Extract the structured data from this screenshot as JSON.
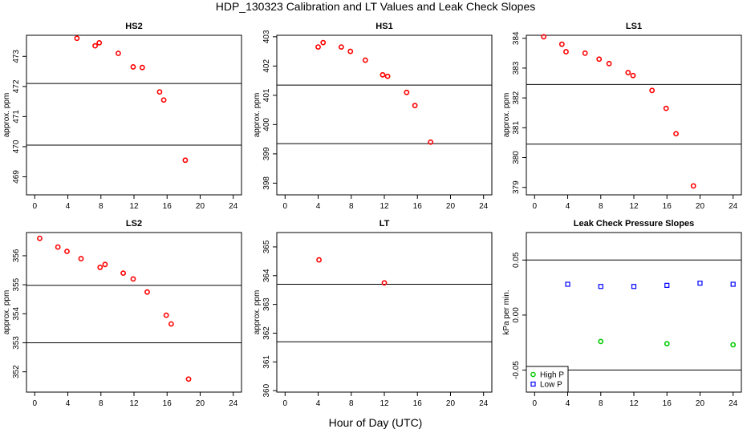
{
  "figure": {
    "title": "HDP_130323  Calibration and LT Values and Leak Check Slopes",
    "xlabel": "Hour of Day (UTC)"
  },
  "colors": {
    "calibration": "#ff0000",
    "high_p": "#00cc00",
    "low_p": "#0000ff",
    "reference_line": "#000000"
  },
  "chart_data": [
    {
      "id": "hs2",
      "type": "scatter",
      "title": "HS2",
      "ylabel": "approx. ppm",
      "xlim": [
        -1,
        25
      ],
      "ylim": [
        468.4,
        473.7
      ],
      "xticks": [
        0,
        4,
        8,
        12,
        16,
        20,
        24
      ],
      "yticks": [
        469,
        470,
        471,
        472,
        473
      ],
      "hlines": [
        470.05,
        472.1
      ],
      "series": [
        {
          "marker": "circle",
          "color": "#ff0000",
          "x": [
            5.1,
            7.3,
            7.8,
            10.1,
            11.9,
            13.0,
            15.1,
            15.6,
            18.2
          ],
          "y": [
            473.6,
            473.35,
            473.45,
            473.1,
            472.65,
            472.63,
            471.82,
            471.55,
            469.55
          ]
        }
      ]
    },
    {
      "id": "hs1",
      "type": "scatter",
      "title": "HS1",
      "ylabel": "approx. ppm",
      "xlim": [
        -1,
        25
      ],
      "ylim": [
        397.6,
        403.05
      ],
      "xticks": [
        0,
        4,
        8,
        12,
        16,
        20,
        24
      ],
      "yticks": [
        398,
        399,
        400,
        401,
        402,
        403
      ],
      "hlines": [
        399.35,
        401.35
      ],
      "series": [
        {
          "marker": "circle",
          "color": "#ff0000",
          "x": [
            4.0,
            4.6,
            6.8,
            7.9,
            9.7,
            11.8,
            12.4,
            14.7,
            15.7,
            17.6
          ],
          "y": [
            402.65,
            402.8,
            402.65,
            402.5,
            402.2,
            401.7,
            401.65,
            401.1,
            400.65,
            399.4
          ]
        }
      ]
    },
    {
      "id": "ls1",
      "type": "scatter",
      "title": "LS1",
      "ylabel": "approx. ppm",
      "xlim": [
        -1,
        25
      ],
      "ylim": [
        378.75,
        384.1
      ],
      "xticks": [
        0,
        4,
        8,
        12,
        16,
        20,
        24
      ],
      "yticks": [
        379,
        380,
        381,
        382,
        383,
        384
      ],
      "hlines": [
        380.45,
        382.45
      ],
      "series": [
        {
          "marker": "circle",
          "color": "#ff0000",
          "x": [
            1.1,
            3.3,
            3.8,
            6.1,
            7.8,
            9.0,
            11.3,
            11.9,
            14.2,
            15.9,
            17.1,
            19.2
          ],
          "y": [
            384.05,
            383.8,
            383.55,
            383.5,
            383.3,
            383.15,
            382.85,
            382.75,
            382.25,
            381.65,
            380.8,
            379.05
          ]
        }
      ]
    },
    {
      "id": "ls2",
      "type": "scatter",
      "title": "LS2",
      "ylabel": "approx. ppm",
      "xlim": [
        -1,
        25
      ],
      "ylim": [
        351.3,
        356.8
      ],
      "xticks": [
        0,
        4,
        8,
        12,
        16,
        20,
        24
      ],
      "yticks": [
        352,
        353,
        354,
        355,
        356
      ],
      "hlines": [
        353.0,
        354.98
      ],
      "series": [
        {
          "marker": "circle",
          "color": "#ff0000",
          "x": [
            0.6,
            2.8,
            3.9,
            5.6,
            7.9,
            8.5,
            10.7,
            11.9,
            13.6,
            15.9,
            16.5,
            18.6
          ],
          "y": [
            356.6,
            356.3,
            356.15,
            355.9,
            355.6,
            355.7,
            355.4,
            355.2,
            354.75,
            353.95,
            353.65,
            351.75
          ]
        }
      ]
    },
    {
      "id": "lt",
      "type": "scatter",
      "title": "LT",
      "ylabel": "approx. ppm",
      "xlim": [
        -1,
        25
      ],
      "ylim": [
        359.95,
        365.5
      ],
      "xticks": [
        0,
        4,
        8,
        12,
        16,
        20,
        24
      ],
      "yticks": [
        360,
        361,
        362,
        363,
        364,
        365
      ],
      "hlines": [
        361.7,
        363.7
      ],
      "series": [
        {
          "marker": "circle",
          "color": "#ff0000",
          "x": [
            4.1,
            12.0
          ],
          "y": [
            364.55,
            363.75
          ]
        }
      ]
    },
    {
      "id": "leak",
      "type": "scatter",
      "title": "Leak Check Pressure Slopes",
      "ylabel": "kPa per min.",
      "xlim": [
        -1,
        25
      ],
      "ylim": [
        -0.07,
        0.075
      ],
      "xticks": [
        0,
        4,
        8,
        12,
        16,
        20,
        24
      ],
      "yticks": [
        -0.05,
        0.0,
        0.05
      ],
      "ytick_labels": [
        "-0.05",
        "0.00",
        "0.05"
      ],
      "hlines": [
        -0.05,
        0.05
      ],
      "legend": {
        "placement": "bottom-left"
      },
      "series": [
        {
          "name": "High P",
          "marker": "circle",
          "color": "#00cc00",
          "x": [
            8.0,
            16.0,
            24.0
          ],
          "y": [
            -0.024,
            -0.026,
            -0.027
          ]
        },
        {
          "name": "Low P",
          "marker": "square",
          "color": "#0000ff",
          "x": [
            4.0,
            8.0,
            12.0,
            16.0,
            20.0,
            24.0
          ],
          "y": [
            0.028,
            0.026,
            0.026,
            0.027,
            0.029,
            0.028
          ]
        }
      ]
    }
  ]
}
